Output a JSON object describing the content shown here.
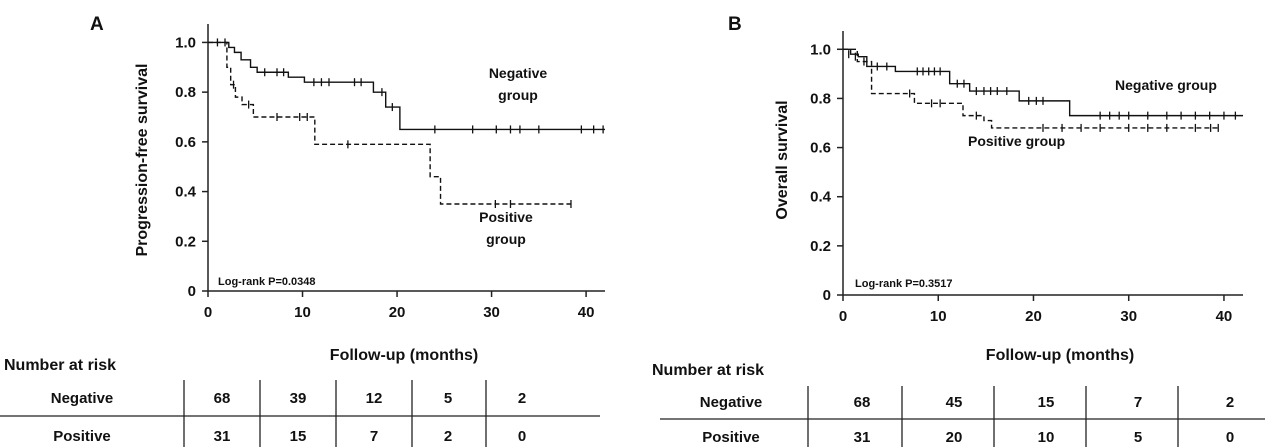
{
  "chart_data": [
    {
      "type": "line",
      "panel": "A",
      "ylabel": "Progression-free survival",
      "xlabel": "Follow-up (months)",
      "xlim": [
        0,
        42
      ],
      "ylim": [
        0,
        1.05
      ],
      "x_ticks": [
        0,
        10,
        20,
        30,
        40
      ],
      "y_ticks": [
        0,
        0.2,
        0.4,
        0.6,
        0.8,
        1.0
      ],
      "y_tick_labels": [
        "0",
        "0.2",
        "0.4",
        "0.6",
        "0.8",
        "1.0"
      ],
      "annotation": "Log-rank P=0.0348",
      "group_labels": [
        {
          "lines": [
            "Negative",
            "group"
          ],
          "series": "Negative"
        },
        {
          "lines": [
            "Positive",
            "group"
          ],
          "series": "Positive"
        }
      ],
      "series": [
        {
          "name": "Negative",
          "style": "solid",
          "steps": [
            [
              0,
              1.0
            ],
            [
              2.2,
              0.98
            ],
            [
              2.8,
              0.96
            ],
            [
              3.5,
              0.93
            ],
            [
              4.5,
              0.9
            ],
            [
              5.2,
              0.88
            ],
            [
              8.5,
              0.86
            ],
            [
              10.2,
              0.84
            ],
            [
              17.5,
              0.8
            ],
            [
              18.8,
              0.74
            ],
            [
              20.3,
              0.65
            ]
          ],
          "end_x": 42,
          "censored": [
            [
              1.0,
              1.0
            ],
            [
              1.8,
              1.0
            ],
            [
              6,
              0.88
            ],
            [
              7.3,
              0.88
            ],
            [
              8,
              0.88
            ],
            [
              11.2,
              0.84
            ],
            [
              12,
              0.84
            ],
            [
              12.8,
              0.84
            ],
            [
              15.5,
              0.84
            ],
            [
              16.2,
              0.84
            ],
            [
              18.4,
              0.8
            ],
            [
              19.5,
              0.74
            ],
            [
              24,
              0.65
            ],
            [
              28,
              0.65
            ],
            [
              30.5,
              0.65
            ],
            [
              32,
              0.65
            ],
            [
              33,
              0.65
            ],
            [
              35,
              0.65
            ],
            [
              39.5,
              0.65
            ],
            [
              40.8,
              0.65
            ],
            [
              41.8,
              0.65
            ]
          ]
        },
        {
          "name": "Positive",
          "style": "dashed",
          "steps": [
            [
              0,
              1.0
            ],
            [
              2.0,
              0.9
            ],
            [
              2.4,
              0.83
            ],
            [
              2.9,
              0.78
            ],
            [
              3.6,
              0.75
            ],
            [
              4.8,
              0.7
            ],
            [
              11.3,
              0.59
            ],
            [
              23.5,
              0.46
            ],
            [
              24.6,
              0.35
            ]
          ],
          "end_x": 38.5,
          "censored": [
            [
              2.7,
              0.83
            ],
            [
              4.3,
              0.75
            ],
            [
              7.3,
              0.7
            ],
            [
              9.7,
              0.7
            ],
            [
              10.5,
              0.7
            ],
            [
              14.8,
              0.59
            ],
            [
              30.4,
              0.35
            ],
            [
              32,
              0.35
            ],
            [
              38.4,
              0.35
            ]
          ]
        }
      ],
      "risk_table": {
        "title": "Number at risk",
        "columns": [
          "0",
          "10",
          "20",
          "30",
          "40"
        ],
        "rows": [
          {
            "label": "Negative",
            "values": [
              "68",
              "39",
              "12",
              "5",
              "2"
            ]
          },
          {
            "label": "Positive",
            "values": [
              "31",
              "15",
              "7",
              "2",
              "0"
            ]
          }
        ]
      }
    },
    {
      "type": "line",
      "panel": "B",
      "ylabel": "Overall survival",
      "xlabel": "Follow-up (months)",
      "xlim": [
        0,
        42
      ],
      "ylim": [
        0,
        1.05
      ],
      "x_ticks": [
        0,
        10,
        20,
        30,
        40
      ],
      "y_ticks": [
        0,
        0.2,
        0.4,
        0.6,
        0.8,
        1.0
      ],
      "y_tick_labels": [
        "0",
        "0.2",
        "0.4",
        "0.6",
        "0.8",
        "1.0"
      ],
      "annotation": "Log-rank P=0.3517",
      "group_labels": [
        {
          "lines": [
            "Negative group"
          ],
          "series": "Negative"
        },
        {
          "lines": [
            "Positive group"
          ],
          "series": "Positive"
        }
      ],
      "series": [
        {
          "name": "Negative",
          "style": "solid",
          "steps": [
            [
              0,
              1.0
            ],
            [
              0.8,
              0.98
            ],
            [
              1.6,
              0.97
            ],
            [
              2.5,
              0.93
            ],
            [
              5.5,
              0.91
            ],
            [
              11.2,
              0.86
            ],
            [
              13.3,
              0.83
            ],
            [
              18.5,
              0.79
            ],
            [
              23.8,
              0.73
            ]
          ],
          "end_x": 42,
          "censored": [
            [
              0.6,
              0.98
            ],
            [
              1.3,
              0.97
            ],
            [
              3.6,
              0.93
            ],
            [
              4.6,
              0.93
            ],
            [
              7.8,
              0.91
            ],
            [
              8.4,
              0.91
            ],
            [
              9,
              0.91
            ],
            [
              9.6,
              0.91
            ],
            [
              10.2,
              0.91
            ],
            [
              12,
              0.86
            ],
            [
              12.7,
              0.86
            ],
            [
              14,
              0.83
            ],
            [
              14.8,
              0.83
            ],
            [
              15.5,
              0.83
            ],
            [
              16.2,
              0.83
            ],
            [
              17.2,
              0.83
            ],
            [
              19.5,
              0.79
            ],
            [
              20.3,
              0.79
            ],
            [
              21,
              0.79
            ],
            [
              27,
              0.73
            ],
            [
              28,
              0.73
            ],
            [
              29,
              0.73
            ],
            [
              30,
              0.73
            ],
            [
              32,
              0.73
            ],
            [
              34,
              0.73
            ],
            [
              35.5,
              0.73
            ],
            [
              37,
              0.73
            ],
            [
              38.5,
              0.73
            ],
            [
              40,
              0.73
            ],
            [
              41.2,
              0.73
            ]
          ]
        },
        {
          "name": "Positive",
          "style": "dashed",
          "steps": [
            [
              0,
              1.0
            ],
            [
              1.5,
              0.95
            ],
            [
              3.0,
              0.82
            ],
            [
              7.5,
              0.78
            ],
            [
              12.6,
              0.73
            ],
            [
              14.8,
              0.71
            ],
            [
              15.6,
              0.68
            ]
          ],
          "end_x": 39.5,
          "censored": [
            [
              2.2,
              0.95
            ],
            [
              7.0,
              0.82
            ],
            [
              9.3,
              0.78
            ],
            [
              10.2,
              0.78
            ],
            [
              14.0,
              0.73
            ],
            [
              21,
              0.68
            ],
            [
              23,
              0.68
            ],
            [
              25,
              0.68
            ],
            [
              27,
              0.68
            ],
            [
              30,
              0.68
            ],
            [
              32,
              0.68
            ],
            [
              34,
              0.68
            ],
            [
              37,
              0.68
            ],
            [
              38.6,
              0.68
            ],
            [
              39.4,
              0.68
            ]
          ]
        }
      ],
      "risk_table": {
        "title": "Number at risk",
        "columns": [
          "0",
          "10",
          "20",
          "30",
          "40"
        ],
        "rows": [
          {
            "label": "Negative",
            "values": [
              "68",
              "45",
              "15",
              "7",
              "2"
            ]
          },
          {
            "label": "Positive",
            "values": [
              "31",
              "20",
              "10",
              "5",
              "0"
            ]
          }
        ]
      }
    }
  ]
}
